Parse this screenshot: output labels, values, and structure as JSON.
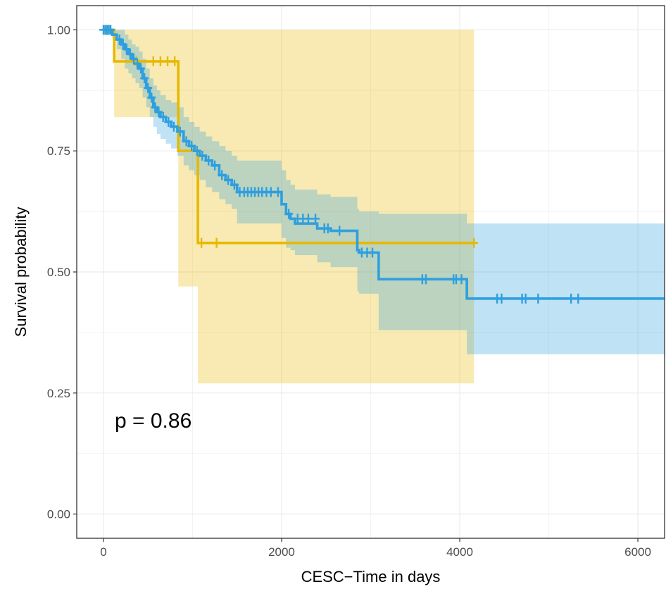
{
  "chart_data": {
    "type": "line",
    "subtype": "kaplan-meier survival curve",
    "title": "",
    "xlabel": "CESC−Time in days",
    "ylabel": "Survival probability",
    "xlim": [
      -300,
      6300
    ],
    "ylim": [
      -0.05,
      1.05
    ],
    "x_ticks": [
      0,
      2000,
      4000,
      6000
    ],
    "x_tick_labels": [
      "0",
      "2000",
      "4000",
      "6000"
    ],
    "y_ticks": [
      0.0,
      0.25,
      0.5,
      0.75,
      1.0
    ],
    "y_tick_labels": [
      "0.00",
      "0.25",
      "0.50",
      "0.75",
      "1.00"
    ],
    "grid": true,
    "legend": "none",
    "annotation": "p = 0.86",
    "series": [
      {
        "color": "#E7B800",
        "step": {
          "x": [
            0,
            120,
            840,
            1060,
            4160
          ],
          "y": [
            1.0,
            0.935,
            0.75,
            0.56,
            0.56
          ]
        },
        "ci": {
          "x": [
            0,
            120,
            840,
            1060,
            4160
          ],
          "upper": [
            1.0,
            1.0,
            1.0,
            1.0,
            1.0
          ],
          "lower": [
            1.0,
            0.82,
            0.47,
            0.27,
            0.27
          ]
        },
        "censored": [
          {
            "x": 20,
            "y": 1.0
          },
          {
            "x": 60,
            "y": 1.0
          },
          {
            "x": 370,
            "y": 0.935
          },
          {
            "x": 560,
            "y": 0.935
          },
          {
            "x": 640,
            "y": 0.935
          },
          {
            "x": 720,
            "y": 0.935
          },
          {
            "x": 800,
            "y": 0.935
          },
          {
            "x": 1100,
            "y": 0.56
          },
          {
            "x": 1270,
            "y": 0.56
          },
          {
            "x": 4160,
            "y": 0.56
          }
        ]
      },
      {
        "color": "#2E9FDF",
        "step": {
          "x": [
            0,
            100,
            150,
            200,
            240,
            280,
            320,
            360,
            400,
            440,
            480,
            520,
            560,
            600,
            640,
            700,
            760,
            830,
            900,
            960,
            1020,
            1080,
            1150,
            1220,
            1300,
            1370,
            1440,
            1500,
            2000,
            2050,
            2100,
            2150,
            2400,
            2550,
            2850,
            2870,
            3090,
            4080,
            6300
          ],
          "y": [
            1.0,
            0.99,
            0.98,
            0.97,
            0.96,
            0.95,
            0.94,
            0.93,
            0.92,
            0.9,
            0.88,
            0.86,
            0.84,
            0.83,
            0.82,
            0.81,
            0.8,
            0.79,
            0.77,
            0.76,
            0.75,
            0.74,
            0.73,
            0.72,
            0.7,
            0.69,
            0.68,
            0.665,
            0.64,
            0.62,
            0.61,
            0.6,
            0.59,
            0.585,
            0.545,
            0.54,
            0.485,
            0.445,
            0.445
          ]
        },
        "ci": {
          "x": [
            0,
            100,
            150,
            200,
            240,
            280,
            320,
            360,
            400,
            440,
            480,
            520,
            560,
            600,
            640,
            700,
            760,
            830,
            900,
            960,
            1020,
            1080,
            1150,
            1220,
            1300,
            1370,
            1440,
            1500,
            2000,
            2050,
            2100,
            2150,
            2400,
            2550,
            2850,
            2870,
            3090,
            4080,
            6300
          ],
          "upper": [
            1.0,
            1.0,
            1.0,
            1.0,
            0.99,
            0.98,
            0.97,
            0.965,
            0.955,
            0.94,
            0.92,
            0.9,
            0.885,
            0.875,
            0.865,
            0.855,
            0.85,
            0.84,
            0.82,
            0.81,
            0.8,
            0.79,
            0.78,
            0.77,
            0.76,
            0.75,
            0.74,
            0.73,
            0.71,
            0.69,
            0.68,
            0.67,
            0.66,
            0.655,
            0.63,
            0.625,
            0.62,
            0.6,
            0.6
          ],
          "lower": [
            1.0,
            0.98,
            0.96,
            0.94,
            0.92,
            0.91,
            0.9,
            0.89,
            0.88,
            0.86,
            0.84,
            0.82,
            0.8,
            0.785,
            0.775,
            0.765,
            0.755,
            0.74,
            0.72,
            0.71,
            0.7,
            0.69,
            0.675,
            0.665,
            0.65,
            0.64,
            0.63,
            0.6,
            0.57,
            0.55,
            0.545,
            0.535,
            0.52,
            0.51,
            0.46,
            0.455,
            0.38,
            0.33,
            0.33
          ]
        },
        "censored": [
          {
            "x": 0,
            "y": 1.0
          },
          {
            "x": 20,
            "y": 1.0
          },
          {
            "x": 40,
            "y": 1.0
          },
          {
            "x": 60,
            "y": 1.0
          },
          {
            "x": 80,
            "y": 1.0
          },
          {
            "x": 180,
            "y": 0.98
          },
          {
            "x": 220,
            "y": 0.97
          },
          {
            "x": 260,
            "y": 0.96
          },
          {
            "x": 300,
            "y": 0.95
          },
          {
            "x": 340,
            "y": 0.94
          },
          {
            "x": 380,
            "y": 0.93
          },
          {
            "x": 420,
            "y": 0.92
          },
          {
            "x": 460,
            "y": 0.9
          },
          {
            "x": 500,
            "y": 0.88
          },
          {
            "x": 540,
            "y": 0.86
          },
          {
            "x": 580,
            "y": 0.84
          },
          {
            "x": 620,
            "y": 0.83
          },
          {
            "x": 670,
            "y": 0.82
          },
          {
            "x": 730,
            "y": 0.81
          },
          {
            "x": 790,
            "y": 0.8
          },
          {
            "x": 860,
            "y": 0.79
          },
          {
            "x": 930,
            "y": 0.77
          },
          {
            "x": 990,
            "y": 0.76
          },
          {
            "x": 1050,
            "y": 0.75
          },
          {
            "x": 1110,
            "y": 0.74
          },
          {
            "x": 1180,
            "y": 0.73
          },
          {
            "x": 1250,
            "y": 0.72
          },
          {
            "x": 1330,
            "y": 0.7
          },
          {
            "x": 1400,
            "y": 0.69
          },
          {
            "x": 1470,
            "y": 0.68
          },
          {
            "x": 1530,
            "y": 0.665
          },
          {
            "x": 1580,
            "y": 0.665
          },
          {
            "x": 1620,
            "y": 0.665
          },
          {
            "x": 1660,
            "y": 0.665
          },
          {
            "x": 1700,
            "y": 0.665
          },
          {
            "x": 1740,
            "y": 0.665
          },
          {
            "x": 1780,
            "y": 0.665
          },
          {
            "x": 1830,
            "y": 0.665
          },
          {
            "x": 1880,
            "y": 0.665
          },
          {
            "x": 1960,
            "y": 0.665
          },
          {
            "x": 2080,
            "y": 0.62
          },
          {
            "x": 2180,
            "y": 0.61
          },
          {
            "x": 2240,
            "y": 0.61
          },
          {
            "x": 2300,
            "y": 0.61
          },
          {
            "x": 2380,
            "y": 0.61
          },
          {
            "x": 2480,
            "y": 0.59
          },
          {
            "x": 2520,
            "y": 0.59
          },
          {
            "x": 2650,
            "y": 0.585
          },
          {
            "x": 2900,
            "y": 0.54
          },
          {
            "x": 2960,
            "y": 0.54
          },
          {
            "x": 3020,
            "y": 0.54
          },
          {
            "x": 3580,
            "y": 0.485
          },
          {
            "x": 3620,
            "y": 0.485
          },
          {
            "x": 3930,
            "y": 0.485
          },
          {
            "x": 3960,
            "y": 0.485
          },
          {
            "x": 4020,
            "y": 0.485
          },
          {
            "x": 4420,
            "y": 0.445
          },
          {
            "x": 4470,
            "y": 0.445
          },
          {
            "x": 4700,
            "y": 0.445
          },
          {
            "x": 4740,
            "y": 0.445
          },
          {
            "x": 4880,
            "y": 0.445
          },
          {
            "x": 5250,
            "y": 0.445
          },
          {
            "x": 5330,
            "y": 0.445
          }
        ]
      }
    ]
  }
}
